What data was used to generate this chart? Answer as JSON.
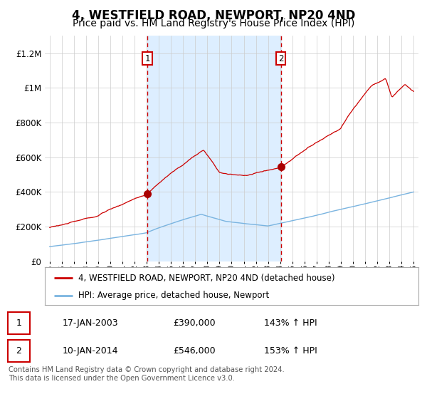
{
  "title": "4, WESTFIELD ROAD, NEWPORT, NP20 4ND",
  "subtitle": "Price paid vs. HM Land Registry's House Price Index (HPI)",
  "title_fontsize": 12,
  "subtitle_fontsize": 10,
  "x_start_year": 1995,
  "x_end_year": 2025,
  "ylim": [
    0,
    1300000
  ],
  "yticks": [
    0,
    200000,
    400000,
    600000,
    800000,
    1000000,
    1200000
  ],
  "ytick_labels": [
    "£0",
    "£200K",
    "£400K",
    "£600K",
    "£800K",
    "£1M",
    "£1.2M"
  ],
  "hpi_line_color": "#7ab4e0",
  "price_line_color": "#cc0000",
  "marker_color": "#aa0000",
  "vline_color": "#cc0000",
  "shade_color": "#ddeeff",
  "grid_color": "#cccccc",
  "background_color": "#ffffff",
  "sale1_year": 2003.05,
  "sale1_price": 390000,
  "sale1_label": "1",
  "sale1_date": "17-JAN-2003",
  "sale1_hpi": "143% ↑ HPI",
  "sale2_year": 2014.05,
  "sale2_price": 546000,
  "sale2_label": "2",
  "sale2_date": "10-JAN-2014",
  "sale2_hpi": "153% ↑ HPI",
  "legend_line1": "4, WESTFIELD ROAD, NEWPORT, NP20 4ND (detached house)",
  "legend_line2": "HPI: Average price, detached house, Newport",
  "footer": "Contains HM Land Registry data © Crown copyright and database right 2024.\nThis data is licensed under the Open Government Licence v3.0.",
  "table_row1_num": "1",
  "table_row1_date": "17-JAN-2003",
  "table_row1_price": "£390,000",
  "table_row1_hpi": "143% ↑ HPI",
  "table_row2_num": "2",
  "table_row2_date": "10-JAN-2014",
  "table_row2_price": "£546,000",
  "table_row2_hpi": "153% ↑ HPI"
}
